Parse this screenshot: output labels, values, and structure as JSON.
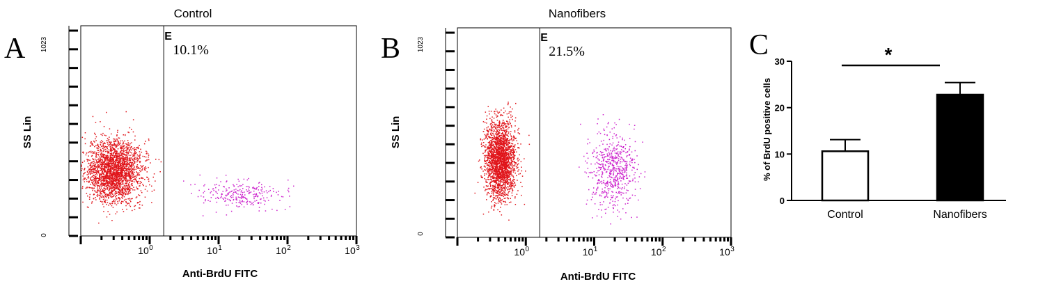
{
  "chart_data": [
    {
      "type": "scatter",
      "panel_letter": "A",
      "title": "Control",
      "xlabel": "Anti-BrdU FITC",
      "ylabel": "SS Lin",
      "x_scale": "log",
      "xlim": [
        0.1,
        1000
      ],
      "ylim": [
        0,
        1023
      ],
      "x_tick_labels": [
        {
          "base": "10",
          "exp": "0",
          "value": 1
        },
        {
          "base": "10",
          "exp": "1",
          "value": 10
        },
        {
          "base": "10",
          "exp": "2",
          "value": 100
        },
        {
          "base": "10",
          "exp": "3",
          "value": 1000
        }
      ],
      "y_tick_labels": [
        {
          "label": "0",
          "value": 0
        },
        {
          "label": "1023",
          "value": 1023
        }
      ],
      "gate": {
        "label": "E",
        "x": 1.6,
        "percent_label": "10.1%"
      },
      "series": [
        {
          "color": "#e0141a",
          "population": "negative",
          "center": {
            "x": 0.3,
            "y": 320
          },
          "spread": {
            "log_x": 0.2,
            "y": 75
          },
          "count": 2400
        },
        {
          "color": "#cc22cc",
          "population": "positive",
          "center": {
            "x": 20,
            "y": 200
          },
          "spread": {
            "log_x": 0.28,
            "y": 35
          },
          "count": 260
        }
      ]
    },
    {
      "type": "scatter",
      "panel_letter": "B",
      "title": "Nanofibers",
      "xlabel": "Anti-BrdU FITC",
      "ylabel": "SS Lin",
      "x_scale": "log",
      "xlim": [
        0.1,
        1000
      ],
      "ylim": [
        0,
        1023
      ],
      "x_tick_labels": [
        {
          "base": "10",
          "exp": "0",
          "value": 1
        },
        {
          "base": "10",
          "exp": "1",
          "value": 10
        },
        {
          "base": "10",
          "exp": "2",
          "value": 100
        },
        {
          "base": "10",
          "exp": "3",
          "value": 1000
        }
      ],
      "y_tick_labels": [
        {
          "label": "0",
          "value": 0
        },
        {
          "label": "1023",
          "value": 1023
        }
      ],
      "gate": {
        "label": "E",
        "x": 1.6,
        "percent_label": "21.5%"
      },
      "series": [
        {
          "color": "#e0141a",
          "population": "negative",
          "center": {
            "x": 0.42,
            "y": 380
          },
          "spread": {
            "log_x": 0.11,
            "y": 95
          },
          "count": 2300
        },
        {
          "color": "#cc22cc",
          "population": "positive",
          "center": {
            "x": 18,
            "y": 330
          },
          "spread": {
            "log_x": 0.17,
            "y": 90
          },
          "count": 620
        }
      ]
    },
    {
      "type": "bar",
      "panel_letter": "C",
      "categories": [
        "Control",
        "Nanofibers"
      ],
      "values": [
        10.6,
        22.8
      ],
      "errors": [
        2.5,
        2.6
      ],
      "bar_colors": [
        "#ffffff",
        "#000000"
      ],
      "ylabel": "% of BrdU positive cells",
      "ylim": [
        0,
        30
      ],
      "yticks": [
        0,
        10,
        20,
        30
      ],
      "significance": "*"
    }
  ]
}
